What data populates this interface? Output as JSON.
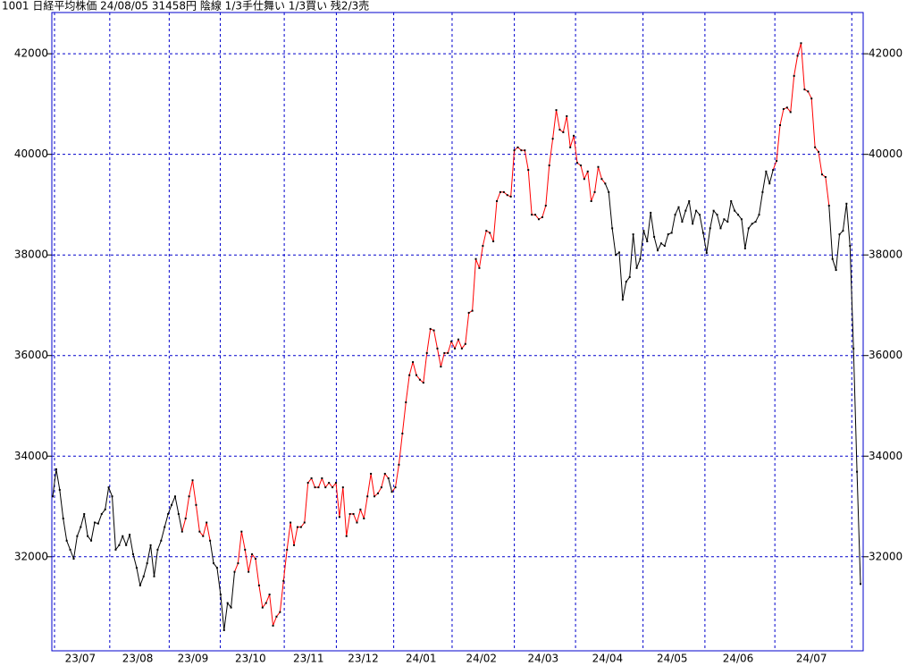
{
  "chart_data": {
    "type": "line",
    "title": "1001 日経平均株価 24/08/05 31458円 陰線 1/3手仕舞い 1/3買い 残2/3売",
    "values": [
      33200,
      33740,
      33330,
      32760,
      32320,
      32140,
      31960,
      32410,
      32590,
      32850,
      32410,
      32320,
      32680,
      32660,
      32850,
      32940,
      33380,
      33200,
      32140,
      32230,
      32410,
      32230,
      32440,
      32050,
      31780,
      31430,
      31610,
      31870,
      32230,
      31610,
      32140,
      32320,
      32590,
      32850,
      33030,
      33200,
      32850,
      32500,
      32760,
      33200,
      33520,
      33030,
      32500,
      32410,
      32680,
      32320,
      31870,
      31780,
      31250,
      30540,
      31080,
      30990,
      31700,
      31870,
      32500,
      32140,
      31700,
      32050,
      31960,
      31430,
      30990,
      31080,
      31250,
      30630,
      30810,
      30900,
      31520,
      32140,
      32680,
      32230,
      32590,
      32590,
      32680,
      33470,
      33560,
      33380,
      33380,
      33560,
      33380,
      33470,
      33380,
      33470,
      32790,
      33380,
      32410,
      32850,
      32850,
      32680,
      32940,
      32760,
      33200,
      33650,
      33200,
      33260,
      33380,
      33650,
      33560,
      33290,
      33380,
      33830,
      34450,
      35070,
      35610,
      35870,
      35610,
      35520,
      35460,
      36050,
      36530,
      36500,
      36140,
      35780,
      36050,
      36050,
      36280,
      36140,
      36320,
      36140,
      36230,
      36850,
      36890,
      37920,
      37740,
      38180,
      38480,
      38440,
      38270,
      39070,
      39250,
      39250,
      39190,
      39160,
      40080,
      40140,
      40080,
      40080,
      39690,
      38800,
      38800,
      38710,
      38750,
      38980,
      39780,
      40310,
      40880,
      40490,
      40440,
      40760,
      40140,
      40370,
      39830,
      39780,
      39510,
      39660,
      39070,
      39250,
      39750,
      39510,
      39420,
      39250,
      38530,
      38000,
      38050,
      37110,
      37470,
      37560,
      38410,
      37740,
      37920,
      38480,
      38270,
      38840,
      38360,
      38090,
      38230,
      38180,
      38410,
      38440,
      38800,
      38950,
      38660,
      38880,
      39070,
      38620,
      38880,
      38800,
      38440,
      38040,
      38530,
      38880,
      38800,
      38530,
      38710,
      38660,
      39070,
      38880,
      38800,
      38710,
      38130,
      38530,
      38620,
      38660,
      38800,
      39250,
      39660,
      39420,
      39690,
      39870,
      40580,
      40900,
      40930,
      40840,
      41560,
      41960,
      42210,
      41290,
      41250,
      41110,
      40140,
      40050,
      39600,
      39550,
      38980,
      37920,
      37700,
      38410,
      38480,
      39020,
      38180,
      36140,
      33690,
      31458
    ],
    "red_ranges": [
      [
        37,
        45
      ],
      [
        52,
        96
      ],
      [
        97,
        158
      ],
      [
        206,
        222
      ]
    ],
    "colors": {
      "line": "#000000",
      "up": "#ff0000",
      "grid": "#0000cc"
    },
    "ylim": [
      30130,
      42820
    ],
    "yticks": [
      32000,
      34000,
      36000,
      38000,
      40000,
      42000
    ],
    "grid": true,
    "xticks": [
      {
        "value": 0,
        "label": "23/07"
      },
      {
        "value": 15.8,
        "label": "23/08"
      },
      {
        "value": 32.8,
        "label": "23/09"
      },
      {
        "value": 47.4,
        "label": "23/10"
      },
      {
        "value": 65.7,
        "label": "23/11"
      },
      {
        "value": 80.6,
        "label": "23/12"
      },
      {
        "value": 97,
        "label": "24/01"
      },
      {
        "value": 113.7,
        "label": "24/02"
      },
      {
        "value": 131.5,
        "label": "24/03"
      },
      {
        "value": 149,
        "label": "24/04"
      },
      {
        "value": 168.3,
        "label": "24/05"
      },
      {
        "value": 186,
        "label": "24/06"
      },
      {
        "value": 206,
        "label": "24/07"
      },
      {
        "value": 228,
        "label": null
      }
    ]
  }
}
